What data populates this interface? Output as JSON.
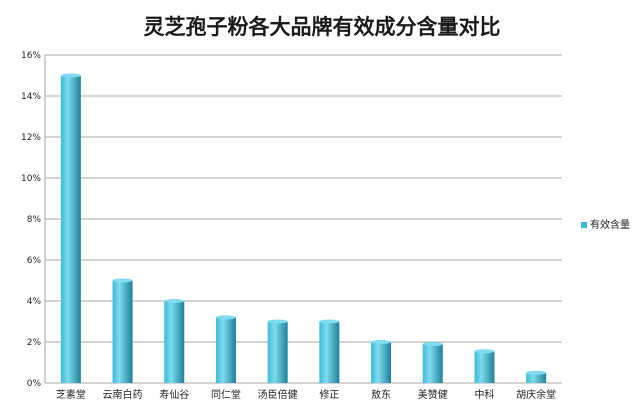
{
  "chart_data": {
    "type": "bar",
    "title": "灵芝孢子粉各大品牌有效成分含量对比",
    "xlabel": "",
    "ylabel": "",
    "categories": [
      "芝素堂",
      "云南白药",
      "寿仙谷",
      "同仁堂",
      "汤臣倍健",
      "修正",
      "敖东",
      "美赞健",
      "中科",
      "胡庆余堂"
    ],
    "series": [
      {
        "name": "有效含量",
        "values": [
          15.0,
          5.0,
          4.0,
          3.2,
          3.0,
          3.0,
          2.0,
          1.9,
          1.55,
          0.5
        ]
      }
    ],
    "ylim": [
      0,
      16
    ],
    "yticks": [
      0,
      2,
      4,
      6,
      8,
      10,
      12,
      14,
      16
    ],
    "ytick_format": "percent",
    "grid": true,
    "legend_position": "right",
    "colors": {
      "bar_light": "#7fdcef",
      "bar_mid": "#3bbad6",
      "bar_dark": "#1d7f99",
      "grid": "#8c8c8c"
    }
  }
}
